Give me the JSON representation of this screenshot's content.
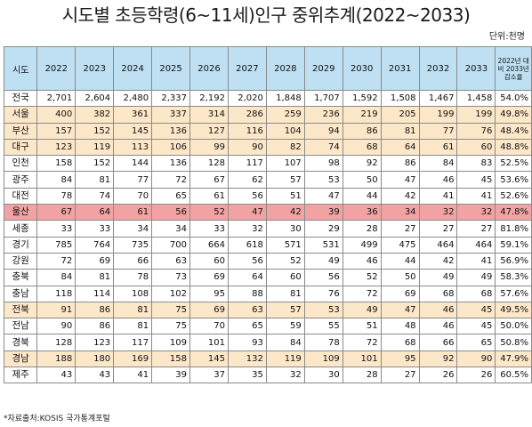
{
  "title": "시도별 초등학령(6~11세)인구 중위추계(2022~2033)",
  "unit": "단위:천명",
  "source": "*자료출처:KOSIS 국가통계포털",
  "colors": {
    "header_bg": "#bfe0f2",
    "alt_row": "#fde7c9",
    "highlight_row": "#f1a3a3"
  },
  "table": {
    "region_header": "시도",
    "years": [
      "2022",
      "2023",
      "2024",
      "2025",
      "2026",
      "2027",
      "2028",
      "2029",
      "2030",
      "2031",
      "2032",
      "2033"
    ],
    "rate_header": "2022년 대비 2033년 감소율",
    "rows": [
      {
        "region": "전국",
        "style": "plain",
        "values": [
          "2,701",
          "2,604",
          "2,480",
          "2,337",
          "2,192",
          "2,020",
          "1,848",
          "1,707",
          "1,592",
          "1,508",
          "1,467",
          "1,458"
        ],
        "rate": "54.0%"
      },
      {
        "region": "서울",
        "style": "alt",
        "values": [
          "400",
          "382",
          "361",
          "337",
          "314",
          "286",
          "259",
          "236",
          "219",
          "205",
          "199",
          "199"
        ],
        "rate": "49.8%"
      },
      {
        "region": "부산",
        "style": "alt",
        "values": [
          "157",
          "152",
          "145",
          "136",
          "127",
          "116",
          "104",
          "94",
          "86",
          "81",
          "77",
          "76"
        ],
        "rate": "48.4%"
      },
      {
        "region": "대구",
        "style": "alt",
        "values": [
          "123",
          "119",
          "113",
          "106",
          "99",
          "90",
          "82",
          "74",
          "68",
          "64",
          "61",
          "60"
        ],
        "rate": "48.8%"
      },
      {
        "region": "인천",
        "style": "plain",
        "values": [
          "158",
          "152",
          "144",
          "136",
          "128",
          "117",
          "107",
          "98",
          "92",
          "86",
          "84",
          "83"
        ],
        "rate": "52.5%"
      },
      {
        "region": "광주",
        "style": "plain",
        "values": [
          "84",
          "81",
          "77",
          "72",
          "67",
          "62",
          "57",
          "53",
          "50",
          "47",
          "46",
          "45"
        ],
        "rate": "53.6%"
      },
      {
        "region": "대전",
        "style": "plain",
        "values": [
          "78",
          "74",
          "70",
          "65",
          "61",
          "56",
          "51",
          "47",
          "44",
          "42",
          "41",
          "41"
        ],
        "rate": "52.6%"
      },
      {
        "region": "울산",
        "style": "hl",
        "values": [
          "67",
          "64",
          "61",
          "56",
          "52",
          "47",
          "42",
          "39",
          "36",
          "34",
          "32",
          "32"
        ],
        "rate": "47.8%"
      },
      {
        "region": "세종",
        "style": "plain",
        "values": [
          "33",
          "33",
          "34",
          "34",
          "33",
          "32",
          "30",
          "29",
          "28",
          "27",
          "27",
          "27"
        ],
        "rate": "81.8%"
      },
      {
        "region": "경기",
        "style": "plain",
        "values": [
          "785",
          "764",
          "735",
          "700",
          "664",
          "618",
          "571",
          "531",
          "499",
          "475",
          "464",
          "464"
        ],
        "rate": "59.1%"
      },
      {
        "region": "강원",
        "style": "plain",
        "values": [
          "72",
          "69",
          "66",
          "63",
          "60",
          "56",
          "52",
          "49",
          "46",
          "44",
          "42",
          "41"
        ],
        "rate": "56.9%"
      },
      {
        "region": "충북",
        "style": "plain",
        "values": [
          "84",
          "81",
          "78",
          "73",
          "69",
          "64",
          "60",
          "56",
          "52",
          "50",
          "49",
          "49"
        ],
        "rate": "58.3%"
      },
      {
        "region": "충남",
        "style": "plain",
        "values": [
          "118",
          "114",
          "108",
          "102",
          "95",
          "88",
          "81",
          "76",
          "72",
          "69",
          "68",
          "68"
        ],
        "rate": "57.6%"
      },
      {
        "region": "전북",
        "style": "alt",
        "values": [
          "91",
          "86",
          "81",
          "75",
          "69",
          "63",
          "57",
          "53",
          "49",
          "47",
          "46",
          "45"
        ],
        "rate": "49.5%"
      },
      {
        "region": "전남",
        "style": "plain",
        "values": [
          "90",
          "86",
          "81",
          "75",
          "70",
          "65",
          "59",
          "55",
          "51",
          "48",
          "46",
          "45"
        ],
        "rate": "50.0%"
      },
      {
        "region": "경북",
        "style": "plain",
        "values": [
          "128",
          "123",
          "117",
          "109",
          "101",
          "93",
          "84",
          "78",
          "72",
          "68",
          "66",
          "65"
        ],
        "rate": "50.8%"
      },
      {
        "region": "경남",
        "style": "alt",
        "values": [
          "188",
          "180",
          "169",
          "158",
          "145",
          "132",
          "119",
          "109",
          "101",
          "95",
          "92",
          "90"
        ],
        "rate": "47.9%"
      },
      {
        "region": "제주",
        "style": "plain",
        "values": [
          "43",
          "43",
          "41",
          "39",
          "37",
          "35",
          "32",
          "30",
          "28",
          "27",
          "26",
          "26"
        ],
        "rate": "60.5%"
      }
    ]
  }
}
